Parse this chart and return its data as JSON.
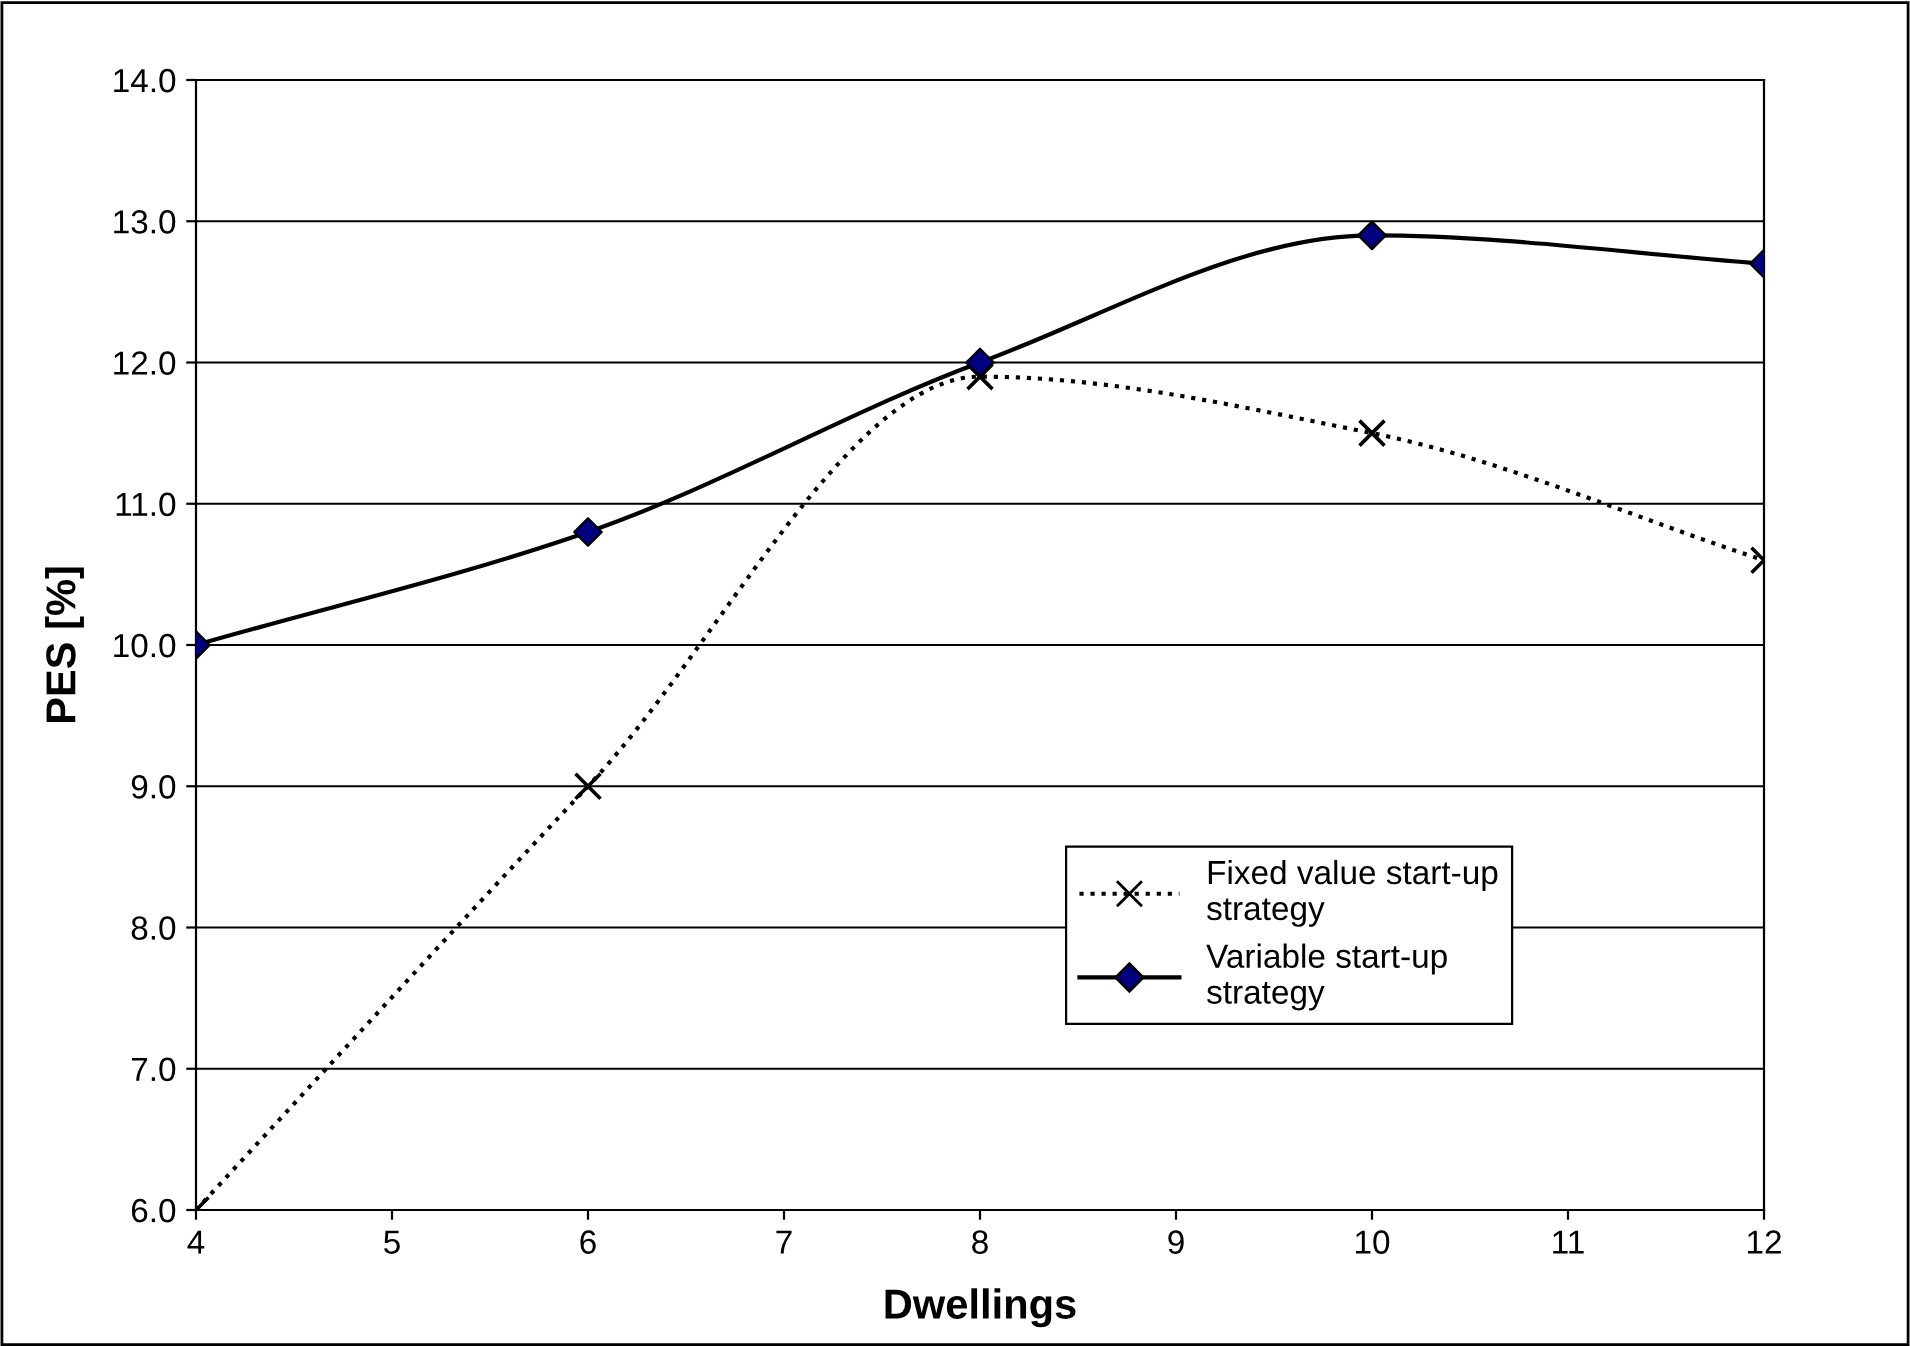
{
  "chart_data": {
    "type": "line",
    "xlabel": "Dwellings",
    "ylabel": "PES [%]",
    "x": [
      4,
      6,
      8,
      10,
      12
    ],
    "series": [
      {
        "name": "Fixed value start-up\nstrategy",
        "color": "#000000",
        "marker": "cross",
        "line_style": "dotted",
        "values": [
          6.0,
          9.0,
          11.9,
          11.5,
          10.6
        ]
      },
      {
        "name": "Variable start-up\nstrategy",
        "color": "#000000",
        "colors": [
          "#000080",
          "#000080",
          "#000080",
          "#000080",
          "#000080"
        ],
        "marker": "diamond",
        "line_style": "solid",
        "values": [
          10.0,
          10.8,
          12.0,
          12.9,
          12.7
        ]
      }
    ],
    "xlim": [
      4,
      12
    ],
    "xticks": [
      4,
      5,
      6,
      7,
      8,
      9,
      10,
      11,
      12
    ],
    "ylim": [
      6,
      14
    ],
    "yticks": [
      {
        "value": 6,
        "label": "6.0"
      },
      {
        "value": 7,
        "label": "7.0"
      },
      {
        "value": 8,
        "label": "8.0"
      },
      {
        "value": 9,
        "label": "9.0"
      },
      {
        "value": 10,
        "label": "10.0"
      },
      {
        "value": 11,
        "label": "11.0"
      },
      {
        "value": 12,
        "label": "12.0"
      },
      {
        "value": 13,
        "label": "13.0"
      },
      {
        "value": 14,
        "label": "14.0"
      }
    ],
    "grid": "y",
    "legend": "lower right"
  }
}
